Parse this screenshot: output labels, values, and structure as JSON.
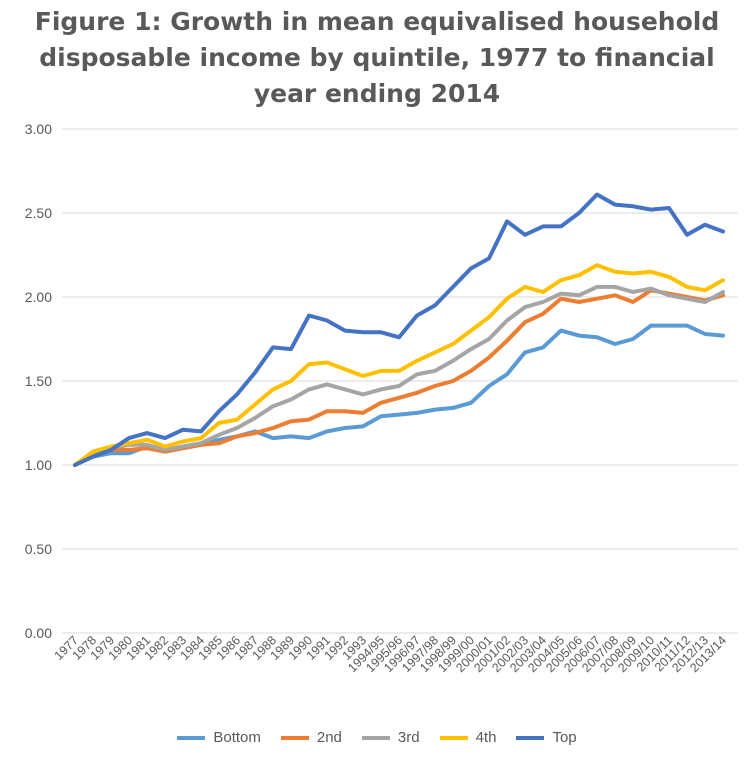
{
  "chart_data": {
    "type": "line",
    "title_lines": [
      "Figure 1: Growth in mean equivalised household",
      "disposable income by quintile, 1977 to financial",
      "year ending 2014"
    ],
    "xlabel": "",
    "ylabel": "",
    "ylim": [
      0,
      3
    ],
    "yticks": [
      "0.00",
      "0.50",
      "1.00",
      "1.50",
      "2.00",
      "2.50",
      "3.00"
    ],
    "grid": true,
    "legend_position": "bottom",
    "categories": [
      "1977",
      "1978",
      "1979",
      "1980",
      "1981",
      "1982",
      "1983",
      "1984",
      "1985",
      "1986",
      "1987",
      "1988",
      "1989",
      "1990",
      "1991",
      "1992",
      "1993",
      "1994/95",
      "1995/96",
      "1996/97",
      "1997/98",
      "1998/99",
      "1999/00",
      "2000/01",
      "2001/02",
      "2002/03",
      "2003/04",
      "2004/05",
      "2005/06",
      "2006/07",
      "2007/08",
      "2008/09",
      "2009/10",
      "2010/11",
      "2011/12",
      "2012/13",
      "2013/14"
    ],
    "series": [
      {
        "name": "Bottom",
        "color": "#5b9bd5",
        "values": [
          1.0,
          1.05,
          1.07,
          1.07,
          1.11,
          1.08,
          1.1,
          1.12,
          1.15,
          1.17,
          1.2,
          1.16,
          1.17,
          1.16,
          1.2,
          1.22,
          1.23,
          1.29,
          1.3,
          1.31,
          1.33,
          1.34,
          1.37,
          1.47,
          1.54,
          1.67,
          1.7,
          1.8,
          1.77,
          1.76,
          1.72,
          1.75,
          1.83,
          1.83,
          1.83,
          1.78,
          1.77
        ]
      },
      {
        "name": "2nd",
        "color": "#ed7d31",
        "values": [
          1.0,
          1.06,
          1.09,
          1.09,
          1.1,
          1.08,
          1.1,
          1.12,
          1.13,
          1.17,
          1.19,
          1.22,
          1.26,
          1.27,
          1.32,
          1.32,
          1.31,
          1.37,
          1.4,
          1.43,
          1.47,
          1.5,
          1.56,
          1.64,
          1.74,
          1.85,
          1.9,
          1.99,
          1.97,
          1.99,
          2.01,
          1.97,
          2.04,
          2.02,
          2.0,
          1.98,
          2.01
        ]
      },
      {
        "name": "3rd",
        "color": "#a5a5a5",
        "values": [
          1.0,
          1.07,
          1.1,
          1.12,
          1.12,
          1.09,
          1.11,
          1.13,
          1.18,
          1.22,
          1.28,
          1.35,
          1.39,
          1.45,
          1.48,
          1.45,
          1.42,
          1.45,
          1.47,
          1.54,
          1.56,
          1.62,
          1.69,
          1.75,
          1.86,
          1.94,
          1.97,
          2.02,
          2.01,
          2.06,
          2.06,
          2.03,
          2.05,
          2.01,
          1.99,
          1.97,
          2.03
        ]
      },
      {
        "name": "4th",
        "color": "#ffc000",
        "values": [
          1.0,
          1.08,
          1.11,
          1.13,
          1.15,
          1.11,
          1.14,
          1.16,
          1.25,
          1.27,
          1.36,
          1.45,
          1.5,
          1.6,
          1.61,
          1.57,
          1.53,
          1.56,
          1.56,
          1.62,
          1.67,
          1.72,
          1.8,
          1.88,
          1.99,
          2.06,
          2.03,
          2.1,
          2.13,
          2.19,
          2.15,
          2.14,
          2.15,
          2.12,
          2.06,
          2.04,
          2.1
        ]
      },
      {
        "name": "Top",
        "color": "#4472c4",
        "values": [
          1.0,
          1.05,
          1.09,
          1.16,
          1.19,
          1.16,
          1.21,
          1.2,
          1.32,
          1.42,
          1.55,
          1.7,
          1.69,
          1.89,
          1.86,
          1.8,
          1.79,
          1.79,
          1.76,
          1.89,
          1.95,
          2.06,
          2.17,
          2.23,
          2.45,
          2.37,
          2.42,
          2.42,
          2.5,
          2.61,
          2.55,
          2.54,
          2.52,
          2.53,
          2.37,
          2.43,
          2.39
        ]
      }
    ]
  }
}
